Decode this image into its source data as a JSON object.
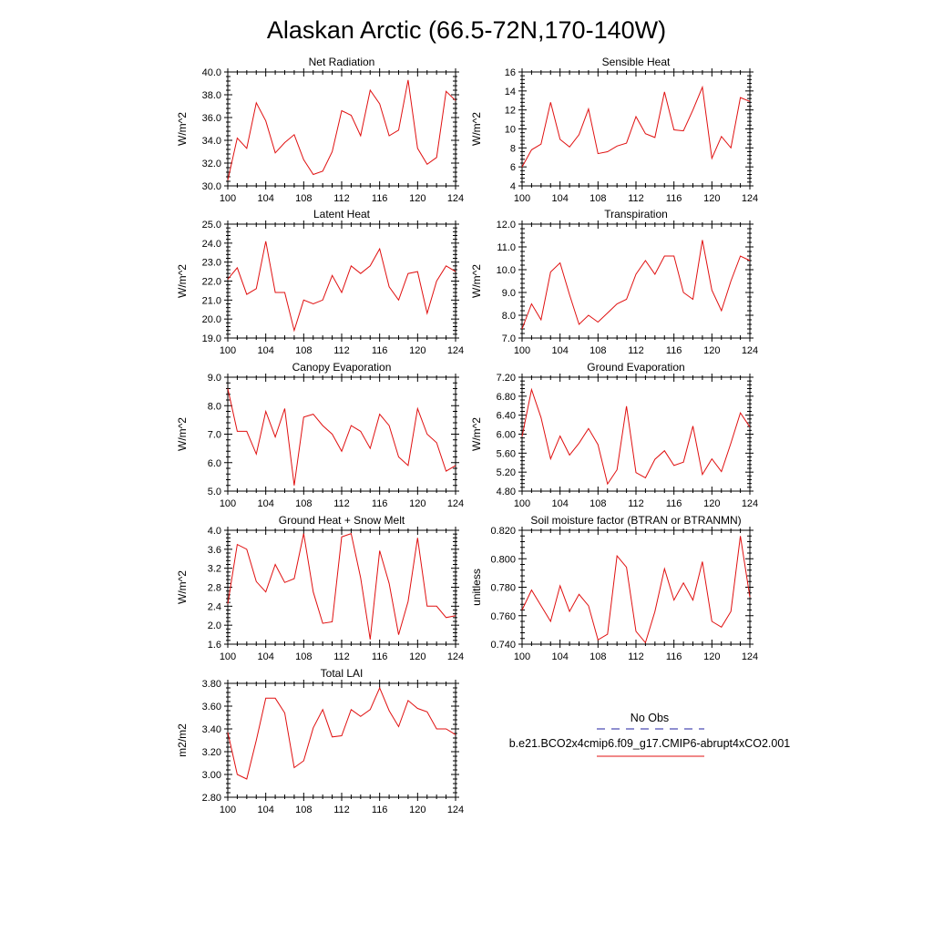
{
  "figure": {
    "title": "Alaskan Arctic (66.5-72N,170-140W)"
  },
  "legend": {
    "items": [
      {
        "label": "No Obs",
        "color": "#1f1fa0",
        "dash": "dashed"
      },
      {
        "label": "b.e21.BCO2x4cmip6.f09_g17.CMIP6-abrupt4xCO2.001",
        "color": "#e01010",
        "dash": "solid"
      }
    ]
  },
  "chart_data": [
    {
      "type": "line",
      "title": "Net Radiation",
      "ylabel": "W/m^2",
      "ylim": [
        30,
        40
      ],
      "yticks": [
        "30.0",
        "32.0",
        "34.0",
        "36.0",
        "38.0",
        "40.0"
      ],
      "xlim": [
        100,
        124
      ],
      "xticks": [
        "100",
        "104",
        "108",
        "112",
        "116",
        "120",
        "124"
      ],
      "x": [
        100,
        101,
        102,
        103,
        104,
        105,
        106,
        107,
        108,
        109,
        110,
        111,
        112,
        113,
        114,
        115,
        116,
        117,
        118,
        119,
        120,
        121,
        122,
        123,
        124
      ],
      "series": [
        {
          "color": "#e01010",
          "values": [
            30.5,
            34.2,
            33.3,
            37.3,
            35.7,
            32.9,
            33.8,
            34.5,
            32.3,
            31.0,
            31.3,
            33.0,
            36.6,
            36.2,
            34.4,
            38.4,
            37.2,
            34.4,
            34.9,
            39.3,
            33.3,
            31.9,
            32.5,
            38.3,
            37.5
          ]
        }
      ]
    },
    {
      "type": "line",
      "title": "Sensible Heat",
      "ylabel": "W/m^2",
      "ylim": [
        4,
        16
      ],
      "yticks": [
        "4",
        "6",
        "8",
        "10",
        "12",
        "14",
        "16"
      ],
      "xlim": [
        100,
        124
      ],
      "xticks": [
        "100",
        "104",
        "108",
        "112",
        "116",
        "120",
        "124"
      ],
      "x": [
        100,
        101,
        102,
        103,
        104,
        105,
        106,
        107,
        108,
        109,
        110,
        111,
        112,
        113,
        114,
        115,
        116,
        117,
        118,
        119,
        120,
        121,
        122,
        123,
        124
      ],
      "series": [
        {
          "color": "#e01010",
          "values": [
            6.0,
            7.8,
            8.4,
            12.8,
            8.9,
            8.1,
            9.4,
            12.1,
            7.4,
            7.6,
            8.2,
            8.5,
            11.3,
            9.5,
            9.1,
            13.9,
            9.9,
            9.8,
            12.0,
            14.4,
            6.9,
            9.2,
            8.0,
            13.3,
            12.9
          ]
        }
      ]
    },
    {
      "type": "line",
      "title": "Latent Heat",
      "ylabel": "W/m^2",
      "ylim": [
        19,
        25
      ],
      "yticks": [
        "19.0",
        "20.0",
        "21.0",
        "22.0",
        "23.0",
        "24.0",
        "25.0"
      ],
      "xlim": [
        100,
        124
      ],
      "xticks": [
        "100",
        "104",
        "108",
        "112",
        "116",
        "120",
        "124"
      ],
      "x": [
        100,
        101,
        102,
        103,
        104,
        105,
        106,
        107,
        108,
        109,
        110,
        111,
        112,
        113,
        114,
        115,
        116,
        117,
        118,
        119,
        120,
        121,
        122,
        123,
        124
      ],
      "series": [
        {
          "color": "#e01010",
          "values": [
            22.1,
            22.7,
            21.3,
            21.6,
            24.1,
            21.4,
            21.4,
            19.4,
            21.0,
            20.8,
            21.0,
            22.3,
            21.4,
            22.8,
            22.4,
            22.8,
            23.7,
            21.7,
            21.0,
            22.4,
            22.5,
            20.3,
            22.0,
            22.8,
            22.5
          ]
        }
      ]
    },
    {
      "type": "line",
      "title": "Transpiration",
      "ylabel": "W/m^2",
      "ylim": [
        7,
        12
      ],
      "yticks": [
        "7.0",
        "8.0",
        "9.0",
        "10.0",
        "11.0",
        "12.0"
      ],
      "xlim": [
        100,
        124
      ],
      "xticks": [
        "100",
        "104",
        "108",
        "112",
        "116",
        "120",
        "124"
      ],
      "x": [
        100,
        101,
        102,
        103,
        104,
        105,
        106,
        107,
        108,
        109,
        110,
        111,
        112,
        113,
        114,
        115,
        116,
        117,
        118,
        119,
        120,
        121,
        122,
        123,
        124
      ],
      "series": [
        {
          "color": "#e01010",
          "values": [
            7.4,
            8.5,
            7.8,
            9.9,
            10.3,
            8.9,
            7.6,
            8.0,
            7.7,
            8.1,
            8.5,
            8.7,
            9.8,
            10.4,
            9.8,
            10.6,
            10.6,
            9.0,
            8.7,
            11.3,
            9.1,
            8.2,
            9.5,
            10.6,
            10.4
          ]
        }
      ]
    },
    {
      "type": "line",
      "title": "Canopy Evaporation",
      "ylabel": "W/m^2",
      "ylim": [
        5,
        9
      ],
      "yticks": [
        "5.0",
        "6.0",
        "7.0",
        "8.0",
        "9.0"
      ],
      "xlim": [
        100,
        124
      ],
      "xticks": [
        "100",
        "104",
        "108",
        "112",
        "116",
        "120",
        "124"
      ],
      "x": [
        100,
        101,
        102,
        103,
        104,
        105,
        106,
        107,
        108,
        109,
        110,
        111,
        112,
        113,
        114,
        115,
        116,
        117,
        118,
        119,
        120,
        121,
        122,
        123,
        124
      ],
      "series": [
        {
          "color": "#e01010",
          "values": [
            8.6,
            7.1,
            7.1,
            6.3,
            7.8,
            6.9,
            7.9,
            5.2,
            7.6,
            7.7,
            7.3,
            7.0,
            6.4,
            7.3,
            7.1,
            6.5,
            7.7,
            7.3,
            6.2,
            5.9,
            7.9,
            7.0,
            6.7,
            5.7,
            5.9
          ]
        }
      ]
    },
    {
      "type": "line",
      "title": "Ground Evaporation",
      "ylabel": "W/m^2",
      "ylim": [
        4.8,
        7.2
      ],
      "yticks": [
        "4.80",
        "5.20",
        "5.60",
        "6.00",
        "6.40",
        "6.80",
        "7.20"
      ],
      "xlim": [
        100,
        124
      ],
      "xticks": [
        "100",
        "104",
        "108",
        "112",
        "116",
        "120",
        "124"
      ],
      "x": [
        100,
        101,
        102,
        103,
        104,
        105,
        106,
        107,
        108,
        109,
        110,
        111,
        112,
        113,
        114,
        115,
        116,
        117,
        118,
        119,
        120,
        121,
        122,
        123,
        124
      ],
      "series": [
        {
          "color": "#e01010",
          "values": [
            5.95,
            6.94,
            6.35,
            5.48,
            5.96,
            5.56,
            5.81,
            6.12,
            5.78,
            4.95,
            5.25,
            6.59,
            5.19,
            5.08,
            5.47,
            5.65,
            5.34,
            5.41,
            6.17,
            5.15,
            5.48,
            5.21,
            5.81,
            6.45,
            6.15
          ]
        }
      ]
    },
    {
      "type": "line",
      "title": "Ground Heat + Snow Melt",
      "ylabel": "W/m^2",
      "ylim": [
        1.6,
        4.0
      ],
      "yticks": [
        "1.6",
        "2.0",
        "2.4",
        "2.8",
        "3.2",
        "3.6",
        "4.0"
      ],
      "xlim": [
        100,
        124
      ],
      "xticks": [
        "100",
        "104",
        "108",
        "112",
        "116",
        "120",
        "124"
      ],
      "x": [
        100,
        101,
        102,
        103,
        104,
        105,
        106,
        107,
        108,
        109,
        110,
        111,
        112,
        113,
        114,
        115,
        116,
        117,
        118,
        119,
        120,
        121,
        122,
        123,
        124
      ],
      "series": [
        {
          "color": "#e01010",
          "values": [
            2.45,
            3.7,
            3.6,
            2.92,
            2.7,
            3.28,
            2.9,
            2.98,
            3.93,
            2.7,
            2.04,
            2.07,
            3.86,
            3.93,
            3.0,
            1.7,
            3.57,
            2.88,
            1.8,
            2.5,
            3.84,
            2.4,
            2.4,
            2.16,
            2.2
          ]
        }
      ]
    },
    {
      "type": "line",
      "title": "Soil moisture factor (BTRAN or BTRANMN)",
      "ylabel": "unitless",
      "ylim": [
        0.74,
        0.82
      ],
      "yticks": [
        "0.740",
        "0.760",
        "0.780",
        "0.800",
        "0.820"
      ],
      "xlim": [
        100,
        124
      ],
      "xticks": [
        "100",
        "104",
        "108",
        "112",
        "116",
        "120",
        "124"
      ],
      "x": [
        100,
        101,
        102,
        103,
        104,
        105,
        106,
        107,
        108,
        109,
        110,
        111,
        112,
        113,
        114,
        115,
        116,
        117,
        118,
        119,
        120,
        121,
        122,
        123,
        124
      ],
      "series": [
        {
          "color": "#e01010",
          "values": [
            0.764,
            0.778,
            0.767,
            0.756,
            0.781,
            0.763,
            0.775,
            0.767,
            0.743,
            0.747,
            0.802,
            0.794,
            0.749,
            0.741,
            0.763,
            0.793,
            0.771,
            0.783,
            0.771,
            0.798,
            0.756,
            0.752,
            0.763,
            0.816,
            0.773
          ]
        }
      ]
    },
    {
      "type": "line",
      "title": "Total LAI",
      "ylabel": "m2/m2",
      "ylim": [
        2.8,
        3.8
      ],
      "yticks": [
        "2.80",
        "3.00",
        "3.20",
        "3.40",
        "3.60",
        "3.80"
      ],
      "xlim": [
        100,
        124
      ],
      "xticks": [
        "100",
        "104",
        "108",
        "112",
        "116",
        "120",
        "124"
      ],
      "x": [
        100,
        101,
        102,
        103,
        104,
        105,
        106,
        107,
        108,
        109,
        110,
        111,
        112,
        113,
        114,
        115,
        116,
        117,
        118,
        119,
        120,
        121,
        122,
        123,
        124
      ],
      "series": [
        {
          "color": "#e01010",
          "values": [
            3.37,
            3.0,
            2.96,
            3.3,
            3.67,
            3.67,
            3.54,
            3.06,
            3.12,
            3.41,
            3.57,
            3.33,
            3.34,
            3.57,
            3.51,
            3.57,
            3.76,
            3.56,
            3.42,
            3.65,
            3.58,
            3.55,
            3.4,
            3.4,
            3.35
          ]
        }
      ]
    }
  ]
}
